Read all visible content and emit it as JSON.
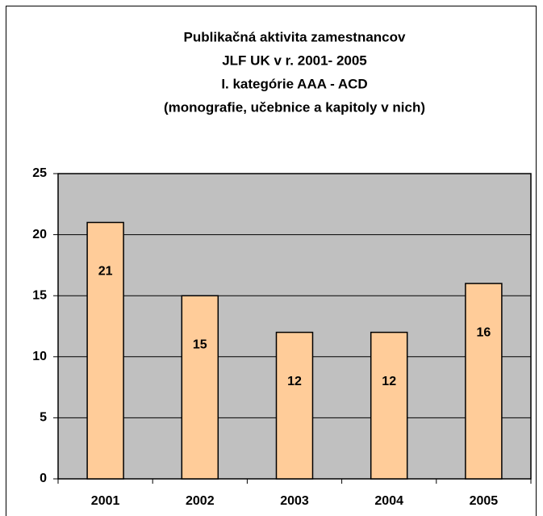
{
  "chart_data": {
    "type": "bar",
    "title": [
      "Publikačná aktivita zamestnancov",
      "JLF UK v r. 2001- 2005",
      "I. kategórie AAA - ACD",
      "(monografie, učebnice a kapitoly v nich)"
    ],
    "categories": [
      "2001",
      "2002",
      "2003",
      "2004",
      "2005"
    ],
    "values": [
      21,
      15,
      12,
      12,
      16
    ],
    "color": "#ffcc99",
    "plot_background": "#c0c0c0",
    "ylim": [
      0,
      25
    ],
    "yticks": [
      0,
      5,
      10,
      15,
      20,
      25
    ],
    "grid": true
  }
}
